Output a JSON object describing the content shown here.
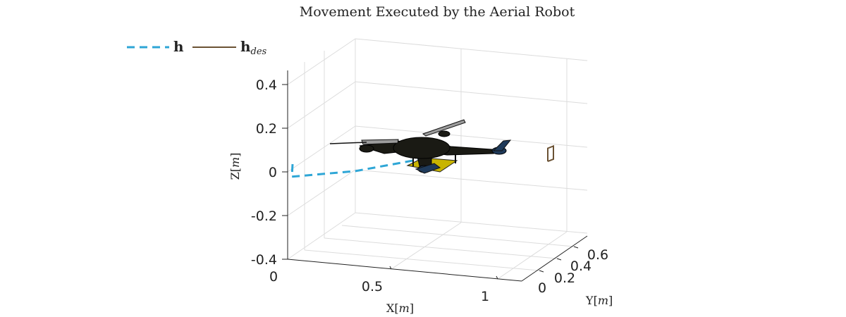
{
  "chart_data": {
    "type": "line",
    "title": "Movement Executed by the Aerial Robot",
    "xlabel": "X",
    "xlabel_unit": "m",
    "ylabel": "Y",
    "ylabel_unit": "m",
    "zlabel": "Z",
    "zlabel_unit": "m",
    "x_ticks": [
      "0",
      "0.5",
      "1"
    ],
    "y_ticks": [
      "0",
      "0.2",
      "0.4",
      "0.6"
    ],
    "z_ticks": [
      "0.4",
      "0.2",
      "0",
      "-0.2",
      "-0.4"
    ],
    "xlim": [
      0,
      1.1
    ],
    "ylim": [
      0,
      0.7
    ],
    "zlim": [
      -0.4,
      0.4
    ],
    "grid": true,
    "legend_position": "top-left",
    "series": [
      {
        "name": "h",
        "style": "dashed",
        "color": "#2ea6d6",
        "points": [
          {
            "x": 0.0,
            "y": 0.05,
            "z": 0.02
          },
          {
            "x": 0.02,
            "y": 0.0,
            "z": -0.02
          },
          {
            "x": 0.25,
            "y": 0.15,
            "z": -0.02
          },
          {
            "x": 0.45,
            "y": 0.3,
            "z": 0.0
          },
          {
            "x": 0.55,
            "y": 0.42,
            "z": 0.02
          }
        ]
      },
      {
        "name": "h",
        "name_subscript": "des",
        "style": "solid",
        "color": "#6b5234",
        "points": [
          {
            "x": 0.95,
            "y": 0.6,
            "z": -0.05
          },
          {
            "x": 1.0,
            "y": 0.55,
            "z": -0.02
          },
          {
            "x": 1.0,
            "y": 0.55,
            "z": 0.04
          },
          {
            "x": 0.95,
            "y": 0.6,
            "z": 0.01
          },
          {
            "x": 0.95,
            "y": 0.6,
            "z": -0.05
          }
        ]
      }
    ]
  },
  "colors": {
    "drone_body": "#1a1a14",
    "drone_arm_tip": "#1f3a5a",
    "propeller": "#9c9c9c",
    "payload": "#c8b400"
  }
}
